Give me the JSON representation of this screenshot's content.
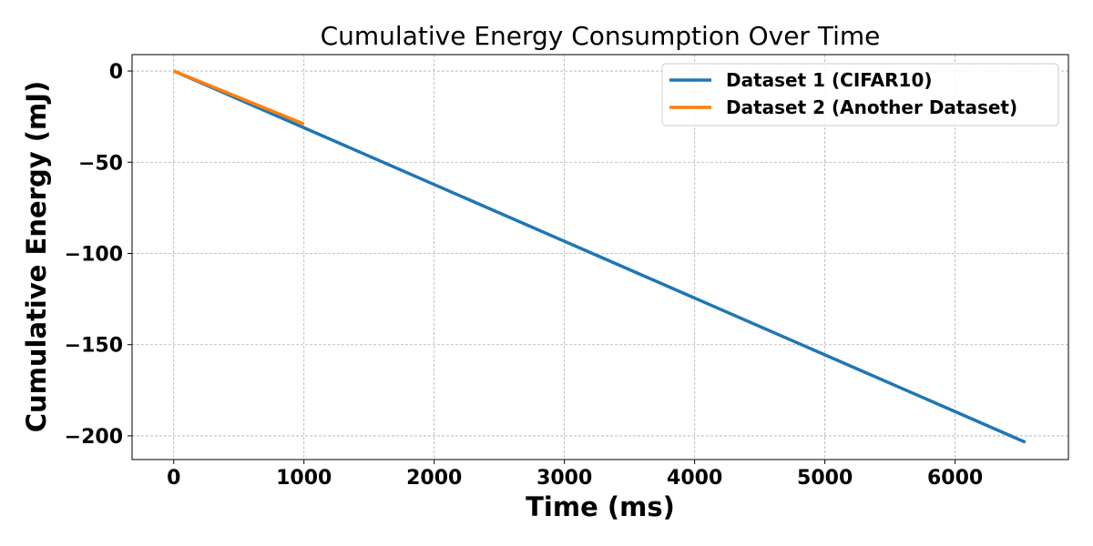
{
  "chart_data": {
    "type": "line",
    "title": "Cumulative Energy Consumption Over Time",
    "xlabel": "Time (ms)",
    "ylabel": "Cumulative Energy (mJ)",
    "xlim": [
      -320,
      6870
    ],
    "ylim": [
      -213,
      9
    ],
    "xticks": [
      0,
      1000,
      2000,
      3000,
      4000,
      5000,
      6000
    ],
    "xtick_labels": [
      "0",
      "1000",
      "2000",
      "3000",
      "4000",
      "5000",
      "6000"
    ],
    "yticks": [
      0,
      -50,
      -100,
      -150,
      -200
    ],
    "ytick_labels": [
      "0",
      "−50",
      "−100",
      "−150",
      "−200"
    ],
    "grid": true,
    "legend_position": "top-right",
    "series": [
      {
        "name": "Dataset 1 (CIFAR10)",
        "color": "#1f77b4",
        "x": [
          0,
          6540
        ],
        "y": [
          0,
          -203.5
        ]
      },
      {
        "name": "Dataset 2 (Another Dataset)",
        "color": "#ff7f0e",
        "x": [
          0,
          1000
        ],
        "y": [
          0,
          -29
        ]
      }
    ]
  }
}
